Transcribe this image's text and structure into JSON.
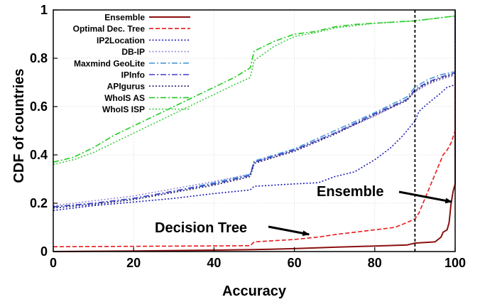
{
  "chart_data": {
    "type": "line",
    "title": "",
    "xlabel": "Accuracy",
    "ylabel": "CDF of countries",
    "xlim": [
      0,
      100
    ],
    "ylim": [
      0,
      1
    ],
    "xticks": [
      0,
      20,
      40,
      60,
      80,
      100
    ],
    "yticks": [
      0,
      0.2,
      0.4,
      0.6,
      0.8,
      1
    ],
    "grid": true,
    "legend_position": "top-left",
    "vline": {
      "x": 90,
      "style": "dashed",
      "color": "#000000"
    },
    "series": [
      {
        "name": "Ensemble",
        "color": "#8b1010",
        "dash": "solid",
        "points": [
          [
            0,
            0
          ],
          [
            20,
            0.002
          ],
          [
            40,
            0.006
          ],
          [
            50,
            0.008
          ],
          [
            60,
            0.012
          ],
          [
            70,
            0.018
          ],
          [
            80,
            0.023
          ],
          [
            88,
            0.027
          ],
          [
            90,
            0.035
          ],
          [
            95,
            0.04
          ],
          [
            96.5,
            0.06
          ],
          [
            97,
            0.08
          ],
          [
            98,
            0.09
          ],
          [
            98.5,
            0.12
          ],
          [
            99,
            0.2
          ],
          [
            99.5,
            0.25
          ],
          [
            100,
            0.28
          ],
          [
            100,
            1
          ]
        ]
      },
      {
        "name": "Optimal Dec. Tree",
        "color": "#e8191a",
        "dash": "dashed",
        "points": [
          [
            0,
            0.02
          ],
          [
            25,
            0.022
          ],
          [
            49,
            0.024
          ],
          [
            50,
            0.04
          ],
          [
            55,
            0.045
          ],
          [
            60,
            0.05
          ],
          [
            66,
            0.06
          ],
          [
            70,
            0.07
          ],
          [
            75,
            0.08
          ],
          [
            80,
            0.09
          ],
          [
            85,
            0.1
          ],
          [
            88,
            0.12
          ],
          [
            90,
            0.135
          ],
          [
            91,
            0.16
          ],
          [
            92,
            0.2
          ],
          [
            93,
            0.24
          ],
          [
            94,
            0.28
          ],
          [
            95,
            0.32
          ],
          [
            96,
            0.36
          ],
          [
            97,
            0.4
          ],
          [
            98,
            0.42
          ],
          [
            99,
            0.45
          ],
          [
            100,
            0.5
          ],
          [
            100,
            1
          ]
        ]
      },
      {
        "name": "IP2Location",
        "color": "#1a1ab8",
        "dash": "dotted",
        "points": [
          [
            0,
            0.17
          ],
          [
            10,
            0.19
          ],
          [
            20,
            0.205
          ],
          [
            30,
            0.22
          ],
          [
            40,
            0.24
          ],
          [
            49,
            0.255
          ],
          [
            50,
            0.27
          ],
          [
            60,
            0.28
          ],
          [
            66,
            0.285
          ],
          [
            70,
            0.31
          ],
          [
            75,
            0.33
          ],
          [
            80,
            0.38
          ],
          [
            84,
            0.43
          ],
          [
            87,
            0.48
          ],
          [
            89,
            0.52
          ],
          [
            90,
            0.54
          ],
          [
            91,
            0.58
          ],
          [
            93,
            0.61
          ],
          [
            96,
            0.65
          ],
          [
            98,
            0.68
          ],
          [
            100,
            0.69
          ],
          [
            100,
            1
          ]
        ]
      },
      {
        "name": "DB-IP",
        "color": "#9a8ad8",
        "dash": "dotted",
        "points": [
          [
            0,
            0.19
          ],
          [
            10,
            0.21
          ],
          [
            20,
            0.23
          ],
          [
            30,
            0.26
          ],
          [
            40,
            0.29
          ],
          [
            49,
            0.32
          ],
          [
            50,
            0.37
          ],
          [
            60,
            0.42
          ],
          [
            70,
            0.49
          ],
          [
            80,
            0.56
          ],
          [
            88,
            0.63
          ],
          [
            90,
            0.66
          ],
          [
            93,
            0.69
          ],
          [
            96,
            0.71
          ],
          [
            100,
            0.73
          ],
          [
            100,
            1
          ]
        ]
      },
      {
        "name": "Maxmind GeoLite",
        "color": "#4a9ad8",
        "dash": "dashdot",
        "points": [
          [
            0,
            0.185
          ],
          [
            10,
            0.2
          ],
          [
            20,
            0.22
          ],
          [
            30,
            0.25
          ],
          [
            40,
            0.285
          ],
          [
            49,
            0.32
          ],
          [
            50,
            0.375
          ],
          [
            60,
            0.425
          ],
          [
            70,
            0.5
          ],
          [
            80,
            0.575
          ],
          [
            88,
            0.64
          ],
          [
            90,
            0.68
          ],
          [
            93,
            0.71
          ],
          [
            96,
            0.73
          ],
          [
            100,
            0.745
          ],
          [
            100,
            1
          ]
        ]
      },
      {
        "name": "IPInfo",
        "color": "#3b3bc8",
        "dash": "dashdot",
        "points": [
          [
            0,
            0.185
          ],
          [
            10,
            0.2
          ],
          [
            20,
            0.22
          ],
          [
            30,
            0.25
          ],
          [
            40,
            0.28
          ],
          [
            49,
            0.315
          ],
          [
            50,
            0.37
          ],
          [
            60,
            0.42
          ],
          [
            70,
            0.49
          ],
          [
            80,
            0.57
          ],
          [
            88,
            0.63
          ],
          [
            90,
            0.67
          ],
          [
            93,
            0.7
          ],
          [
            96,
            0.72
          ],
          [
            100,
            0.74
          ],
          [
            100,
            1
          ]
        ]
      },
      {
        "name": "APIgurus",
        "color": "#202070",
        "dash": "dotted",
        "points": [
          [
            0,
            0.18
          ],
          [
            10,
            0.195
          ],
          [
            20,
            0.215
          ],
          [
            30,
            0.245
          ],
          [
            40,
            0.275
          ],
          [
            49,
            0.31
          ],
          [
            50,
            0.365
          ],
          [
            60,
            0.415
          ],
          [
            70,
            0.485
          ],
          [
            80,
            0.565
          ],
          [
            88,
            0.625
          ],
          [
            90,
            0.665
          ],
          [
            93,
            0.695
          ],
          [
            96,
            0.715
          ],
          [
            100,
            0.735
          ],
          [
            100,
            1
          ]
        ]
      },
      {
        "name": "WhoIS AS",
        "color": "#22cc22",
        "dash": "dashdot",
        "points": [
          [
            0,
            0.37
          ],
          [
            5,
            0.39
          ],
          [
            10,
            0.43
          ],
          [
            15,
            0.48
          ],
          [
            20,
            0.52
          ],
          [
            25,
            0.56
          ],
          [
            30,
            0.6
          ],
          [
            35,
            0.64
          ],
          [
            40,
            0.68
          ],
          [
            45,
            0.72
          ],
          [
            49,
            0.76
          ],
          [
            50,
            0.83
          ],
          [
            55,
            0.87
          ],
          [
            60,
            0.9
          ],
          [
            65,
            0.91
          ],
          [
            70,
            0.93
          ],
          [
            75,
            0.94
          ],
          [
            80,
            0.945
          ],
          [
            85,
            0.95
          ],
          [
            90,
            0.955
          ],
          [
            95,
            0.965
          ],
          [
            100,
            0.975
          ],
          [
            100,
            1
          ]
        ]
      },
      {
        "name": "WhoIS ISP",
        "color": "#3fcc3f",
        "dash": "dotted",
        "points": [
          [
            0,
            0.36
          ],
          [
            5,
            0.38
          ],
          [
            10,
            0.41
          ],
          [
            15,
            0.45
          ],
          [
            20,
            0.49
          ],
          [
            25,
            0.53
          ],
          [
            30,
            0.57
          ],
          [
            35,
            0.61
          ],
          [
            40,
            0.65
          ],
          [
            45,
            0.69
          ],
          [
            49,
            0.72
          ],
          [
            50,
            0.79
          ],
          [
            55,
            0.85
          ],
          [
            60,
            0.89
          ],
          [
            65,
            0.905
          ],
          [
            70,
            0.925
          ],
          [
            75,
            0.935
          ],
          [
            80,
            0.945
          ],
          [
            85,
            0.95
          ],
          [
            90,
            0.955
          ],
          [
            95,
            0.965
          ],
          [
            100,
            0.975
          ],
          [
            100,
            1
          ]
        ]
      }
    ],
    "annotations": [
      {
        "text": "Ensemble",
        "target": [
          99.5,
          0.2
        ]
      },
      {
        "text": "Decision Tree",
        "target": [
          64,
          0.065
        ]
      }
    ]
  }
}
